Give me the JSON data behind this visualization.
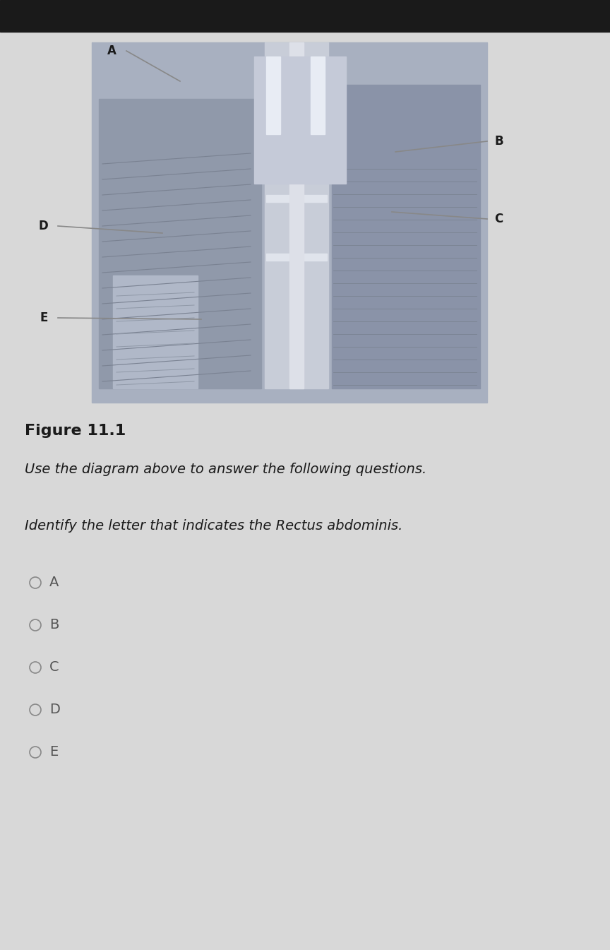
{
  "bg_color": "#d8d8d8",
  "fig_width": 8.64,
  "fig_height": 13.45,
  "figure_caption": "Figure 11.1",
  "instruction_text": "Use the diagram above to answer the following questions.",
  "question_text": "Identify the letter that indicates the Rectus abdominis.",
  "answer_options": [
    "A",
    "B",
    "C",
    "D",
    "E"
  ],
  "image_bg": "#b8bfcc",
  "label_A": "A",
  "label_B": "B",
  "label_C": "C",
  "label_D": "D",
  "label_E": "E",
  "text_color_dark": "#1a1a1a",
  "text_color_answer": "#555555",
  "caption_fontsize": 16,
  "instruction_fontsize": 14,
  "question_fontsize": 14,
  "answer_fontsize": 14,
  "radio_color": "#888888"
}
